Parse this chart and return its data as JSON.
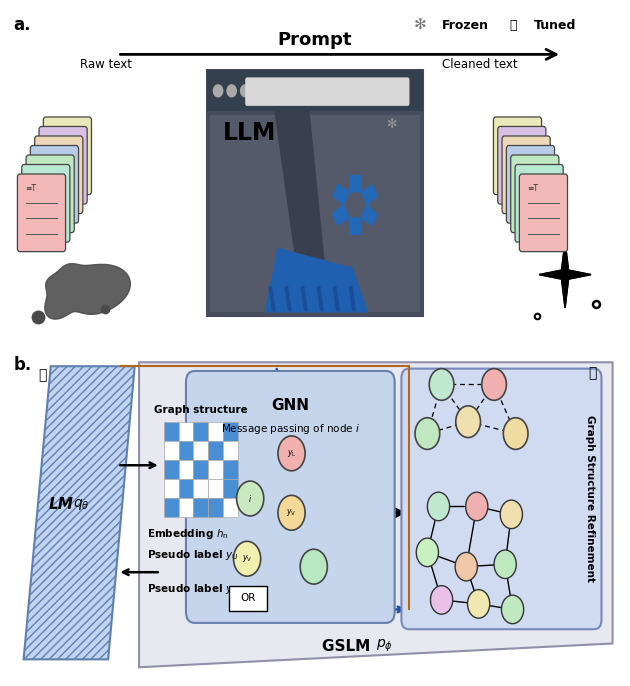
{
  "panel_a_label": "a.",
  "panel_b_label": "b.",
  "prompt_text": "Prompt",
  "raw_text": "Raw text",
  "cleaned_text": "Cleaned text",
  "llm_text": "LLM",
  "frozen_text": "Frozen",
  "tuned_text": "Tuned",
  "gnn_text": "GNN",
  "message_passing_text": "Message passing of node ",
  "gslm_text": "GSLM ",
  "lm_text": "LM",
  "graph_structure_text": "Graph structure",
  "embedding_text": "Embedding ",
  "pseudo_label1_text": "Pseudo label ",
  "pseudo_label2_text": "Pseudo label ",
  "or_text": "OR",
  "graph_refinement_text": "Graph Structure Refinement",
  "card_colors_left": [
    "#f2b8b8",
    "#b8e8d4",
    "#c0e8c0",
    "#b8cce8",
    "#ecd8b8",
    "#d8c0e4",
    "#e8e8b8"
  ],
  "card_colors_right": [
    "#f2b8b8",
    "#b8e8d4",
    "#c0e8c0",
    "#b8cce8",
    "#ecd8b8",
    "#d8c0e4",
    "#e8e8b8"
  ],
  "bg_color_a": "#ffffff",
  "bg_color_b": "#f0f0f0",
  "border_color": "#222222",
  "blue_arrow_color": "#1a4fa0",
  "orange_line_color": "#b06820",
  "llm_window_color": "#464c5e",
  "matrix_blue": "#4a8fd4",
  "matrix_white": "#ffffff",
  "lm_hatch_color": "#8aaadd"
}
